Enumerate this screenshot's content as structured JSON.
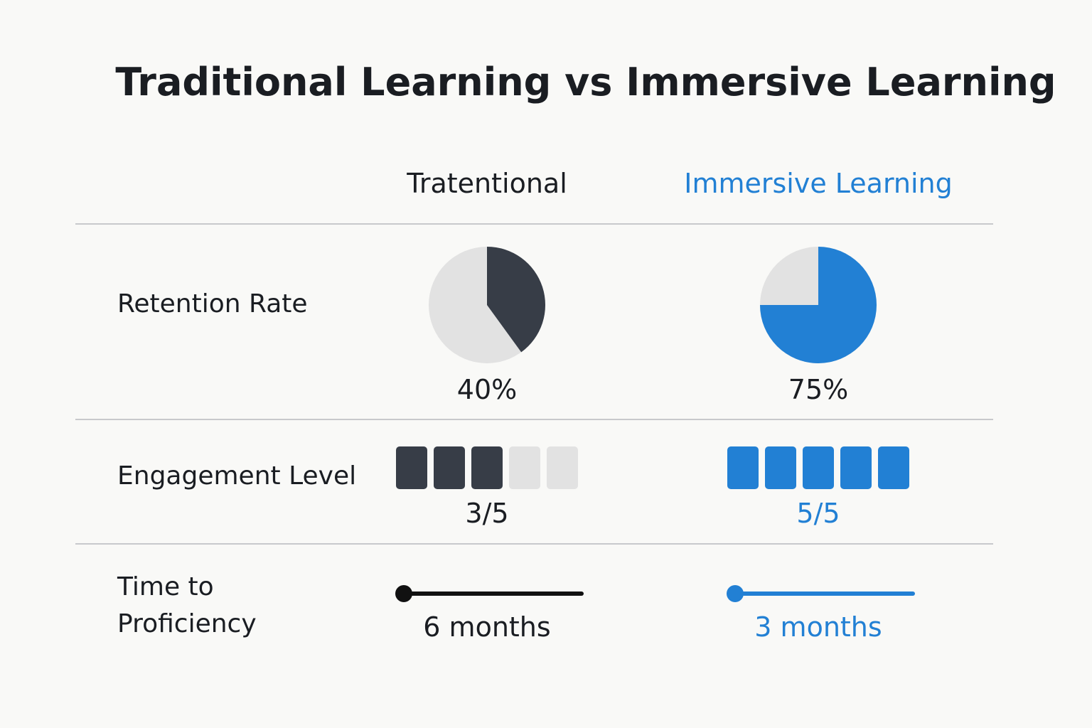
{
  "title": "Traditional Learning vs Immersive Learning",
  "columns": [
    {
      "name": "Tratentional",
      "text_color": "#1a1d22",
      "mark_color": "#373d47"
    },
    {
      "name": "Immersive Learning",
      "text_color": "#2280d4",
      "mark_color": "#2280d4"
    }
  ],
  "track_color": "#e2e2e2",
  "rows": [
    {
      "label": "Retention Rate",
      "kind": "pie",
      "cells": [
        {
          "value": 40,
          "label": "40%"
        },
        {
          "value": 75,
          "label": "75%"
        }
      ]
    },
    {
      "label": "Engagement Level",
      "kind": "blocks",
      "cells": [
        {
          "value": 3,
          "total": 5,
          "label": "3/5"
        },
        {
          "value": 5,
          "total": 5,
          "label": "5/5"
        }
      ]
    },
    {
      "label": "Time to Proficiency",
      "kind": "timeline",
      "cells": [
        {
          "label": "6 months"
        },
        {
          "label": "3 months"
        }
      ]
    }
  ]
}
